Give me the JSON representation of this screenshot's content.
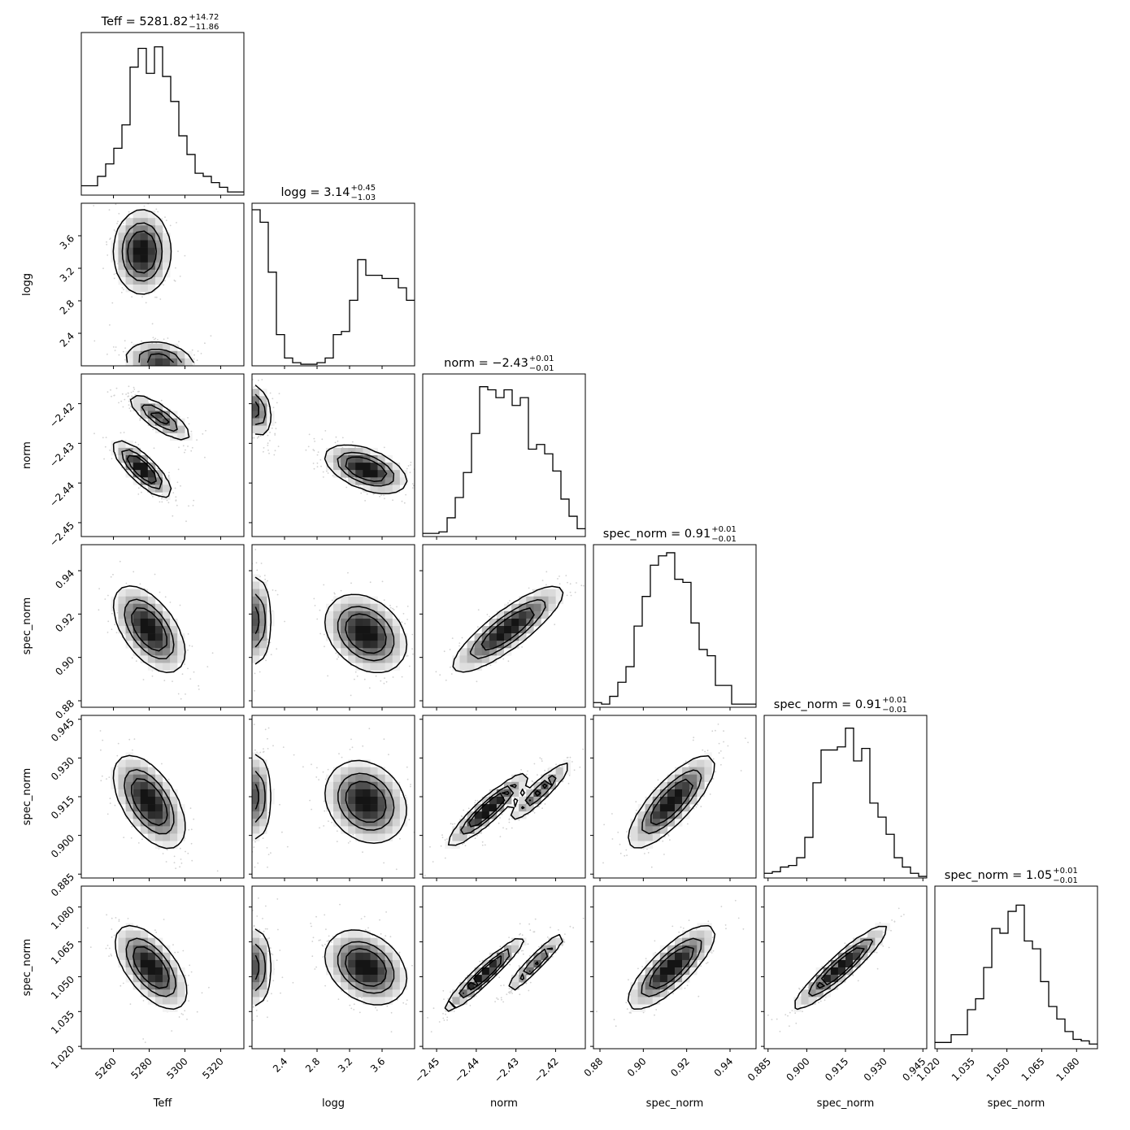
{
  "chart_data": {
    "type": "corner",
    "parameters": [
      {
        "key": "teff",
        "label": "Teff",
        "range": [
          5242,
          5333
        ],
        "ticks": [
          5260,
          5280,
          5300,
          5320
        ],
        "tick_labels": [
          "5260",
          "5280",
          "5300",
          "5320"
        ],
        "title": {
          "main": "Teff = 5281.82",
          "plus": "+14.72",
          "minus": "−11.86"
        }
      },
      {
        "key": "logg",
        "label": "logg",
        "range": [
          2.0,
          4.0
        ],
        "ticks": [
          2.4,
          2.8,
          3.2,
          3.6
        ],
        "tick_labels": [
          "2.4",
          "2.8",
          "3.2",
          "3.6"
        ],
        "title": {
          "main": "logg = 3.14",
          "plus": "+0.45",
          "minus": "−1.03"
        }
      },
      {
        "key": "norm",
        "label": "norm",
        "range": [
          -2.4535,
          -2.4125
        ],
        "ticks": [
          -2.45,
          -2.44,
          -2.43,
          -2.42
        ],
        "tick_labels": [
          "−2.45",
          "−2.44",
          "−2.43",
          "−2.42"
        ],
        "title": {
          "main": "norm = −2.43",
          "plus": "+0.01",
          "minus": "−0.01"
        }
      },
      {
        "key": "spec1",
        "label": "spec_norm",
        "range": [
          0.877,
          0.952
        ],
        "ticks": [
          0.88,
          0.9,
          0.92,
          0.94
        ],
        "tick_labels": [
          "0.88",
          "0.90",
          "0.92",
          "0.94"
        ],
        "title": {
          "main": "spec_norm = 0.91",
          "plus": "+0.01",
          "minus": "−0.01"
        }
      },
      {
        "key": "spec2",
        "label": "spec_norm",
        "range": [
          0.8835,
          0.9465
        ],
        "ticks": [
          0.885,
          0.9,
          0.915,
          0.93,
          0.945
        ],
        "tick_labels": [
          "0.885",
          "0.900",
          "0.915",
          "0.930",
          "0.945"
        ],
        "title": {
          "main": "spec_norm = 0.91",
          "plus": "+0.01",
          "minus": "−0.01"
        }
      },
      {
        "key": "spec3",
        "label": "spec_norm",
        "range": [
          1.019,
          1.089
        ],
        "ticks": [
          1.02,
          1.035,
          1.05,
          1.065,
          1.08
        ],
        "tick_labels": [
          "1.020",
          "1.035",
          "1.050",
          "1.065",
          "1.080"
        ],
        "title": {
          "main": "spec_norm = 1.05",
          "plus": "+0.01",
          "minus": "−0.01"
        }
      }
    ],
    "histograms": [
      [
        0.06,
        0.06,
        0.12,
        0.2,
        0.3,
        0.45,
        0.82,
        0.94,
        0.78,
        0.95,
        0.76,
        0.6,
        0.38,
        0.26,
        0.14,
        0.12,
        0.08,
        0.05,
        0.02,
        0.02
      ],
      [
        1.0,
        0.92,
        0.6,
        0.2,
        0.05,
        0.02,
        0.01,
        0.01,
        0.02,
        0.05,
        0.2,
        0.22,
        0.42,
        0.68,
        0.58,
        0.58,
        0.56,
        0.56,
        0.5,
        0.42
      ],
      [
        0.02,
        0.02,
        0.03,
        0.12,
        0.25,
        0.41,
        0.66,
        0.96,
        0.94,
        0.89,
        0.94,
        0.84,
        0.89,
        0.56,
        0.59,
        0.53,
        0.42,
        0.24,
        0.13,
        0.05
      ],
      [
        0.03,
        0.02,
        0.07,
        0.16,
        0.26,
        0.52,
        0.71,
        0.91,
        0.97,
        0.99,
        0.82,
        0.8,
        0.54,
        0.37,
        0.33,
        0.14,
        0.14,
        0.02,
        0.02,
        0.02
      ],
      [
        0.03,
        0.04,
        0.07,
        0.08,
        0.13,
        0.26,
        0.61,
        0.82,
        0.82,
        0.84,
        0.96,
        0.75,
        0.83,
        0.48,
        0.39,
        0.28,
        0.13,
        0.07,
        0.03,
        0.01
      ],
      [
        0.04,
        0.04,
        0.09,
        0.09,
        0.25,
        0.32,
        0.52,
        0.77,
        0.74,
        0.88,
        0.92,
        0.69,
        0.64,
        0.43,
        0.27,
        0.19,
        0.11,
        0.06,
        0.05,
        0.03
      ]
    ],
    "pairs": [
      {
        "row": 1,
        "col": 0,
        "blobs": [
          {
            "mx": 5276,
            "my": 3.4,
            "sx": 8,
            "sy": 0.26,
            "rho": 0.0,
            "w": 1.0
          },
          {
            "mx": 5286,
            "my": 2.06,
            "sx": 10,
            "sy": 0.12,
            "rho": -0.2,
            "w": 0.8
          }
        ]
      },
      {
        "row": 2,
        "col": 0,
        "blobs": [
          {
            "mx": 5276,
            "my": -2.4365,
            "sx": 8,
            "sy": 0.0035,
            "rho": -0.8,
            "w": 1.0
          },
          {
            "mx": 5286,
            "my": -2.4235,
            "sx": 9,
            "sy": 0.003,
            "rho": -0.8,
            "w": 0.7
          }
        ]
      },
      {
        "row": 3,
        "col": 0,
        "blobs": [
          {
            "mx": 5280,
            "my": 0.913,
            "sx": 10,
            "sy": 0.01,
            "rho": -0.55,
            "w": 1.0
          }
        ]
      },
      {
        "row": 4,
        "col": 0,
        "blobs": [
          {
            "mx": 5280,
            "my": 0.913,
            "sx": 10,
            "sy": 0.009,
            "rho": -0.55,
            "w": 1.0
          }
        ]
      },
      {
        "row": 5,
        "col": 0,
        "blobs": [
          {
            "mx": 5281,
            "my": 1.054,
            "sx": 10,
            "sy": 0.009,
            "rho": -0.6,
            "w": 1.0
          }
        ]
      },
      {
        "row": 2,
        "col": 1,
        "blobs": [
          {
            "mx": 2.05,
            "my": -2.4215,
            "sx": 0.1,
            "sy": 0.0035,
            "rho": -0.3,
            "w": 0.7
          },
          {
            "mx": 3.4,
            "my": -2.4365,
            "sx": 0.25,
            "sy": 0.003,
            "rho": -0.5,
            "w": 1.0
          }
        ]
      },
      {
        "row": 3,
        "col": 1,
        "blobs": [
          {
            "mx": 2.05,
            "my": 0.917,
            "sx": 0.1,
            "sy": 0.011,
            "rho": 0.0,
            "w": 0.7
          },
          {
            "mx": 3.4,
            "my": 0.911,
            "sx": 0.25,
            "sy": 0.009,
            "rho": -0.3,
            "w": 1.0
          }
        ]
      },
      {
        "row": 4,
        "col": 1,
        "blobs": [
          {
            "mx": 2.05,
            "my": 0.915,
            "sx": 0.1,
            "sy": 0.009,
            "rho": 0.0,
            "w": 0.7
          },
          {
            "mx": 3.4,
            "my": 0.913,
            "sx": 0.25,
            "sy": 0.008,
            "rho": -0.2,
            "w": 1.0
          }
        ]
      },
      {
        "row": 5,
        "col": 1,
        "blobs": [
          {
            "mx": 2.05,
            "my": 1.054,
            "sx": 0.1,
            "sy": 0.009,
            "rho": 0.0,
            "w": 0.7
          },
          {
            "mx": 3.4,
            "my": 1.054,
            "sx": 0.25,
            "sy": 0.008,
            "rho": -0.3,
            "w": 1.0
          }
        ]
      },
      {
        "row": 3,
        "col": 2,
        "blobs": [
          {
            "mx": -2.432,
            "my": 0.913,
            "sx": 0.007,
            "sy": 0.01,
            "rho": 0.85,
            "w": 1.0
          }
        ]
      },
      {
        "row": 4,
        "col": 2,
        "blobs": [
          {
            "mx": -2.437,
            "my": 0.91,
            "sx": 0.005,
            "sy": 0.007,
            "rho": 0.92,
            "w": 1.0
          },
          {
            "mx": -2.424,
            "my": 0.917,
            "sx": 0.004,
            "sy": 0.006,
            "rho": 0.92,
            "w": 0.7
          }
        ]
      },
      {
        "row": 5,
        "col": 2,
        "blobs": [
          {
            "mx": -2.438,
            "my": 1.051,
            "sx": 0.005,
            "sy": 0.008,
            "rho": 0.95,
            "w": 1.0
          },
          {
            "mx": -2.425,
            "my": 1.056,
            "sx": 0.004,
            "sy": 0.007,
            "rho": 0.95,
            "w": 0.7
          }
        ]
      },
      {
        "row": 4,
        "col": 3,
        "blobs": [
          {
            "mx": 0.913,
            "my": 0.913,
            "sx": 0.01,
            "sy": 0.009,
            "rho": 0.8,
            "w": 1.0
          }
        ]
      },
      {
        "row": 5,
        "col": 3,
        "blobs": [
          {
            "mx": 0.913,
            "my": 1.054,
            "sx": 0.01,
            "sy": 0.009,
            "rho": 0.8,
            "w": 1.0
          }
        ]
      },
      {
        "row": 5,
        "col": 4,
        "blobs": [
          {
            "mx": 0.913,
            "my": 1.054,
            "sx": 0.009,
            "sy": 0.009,
            "rho": 0.93,
            "w": 1.0
          }
        ]
      }
    ]
  }
}
